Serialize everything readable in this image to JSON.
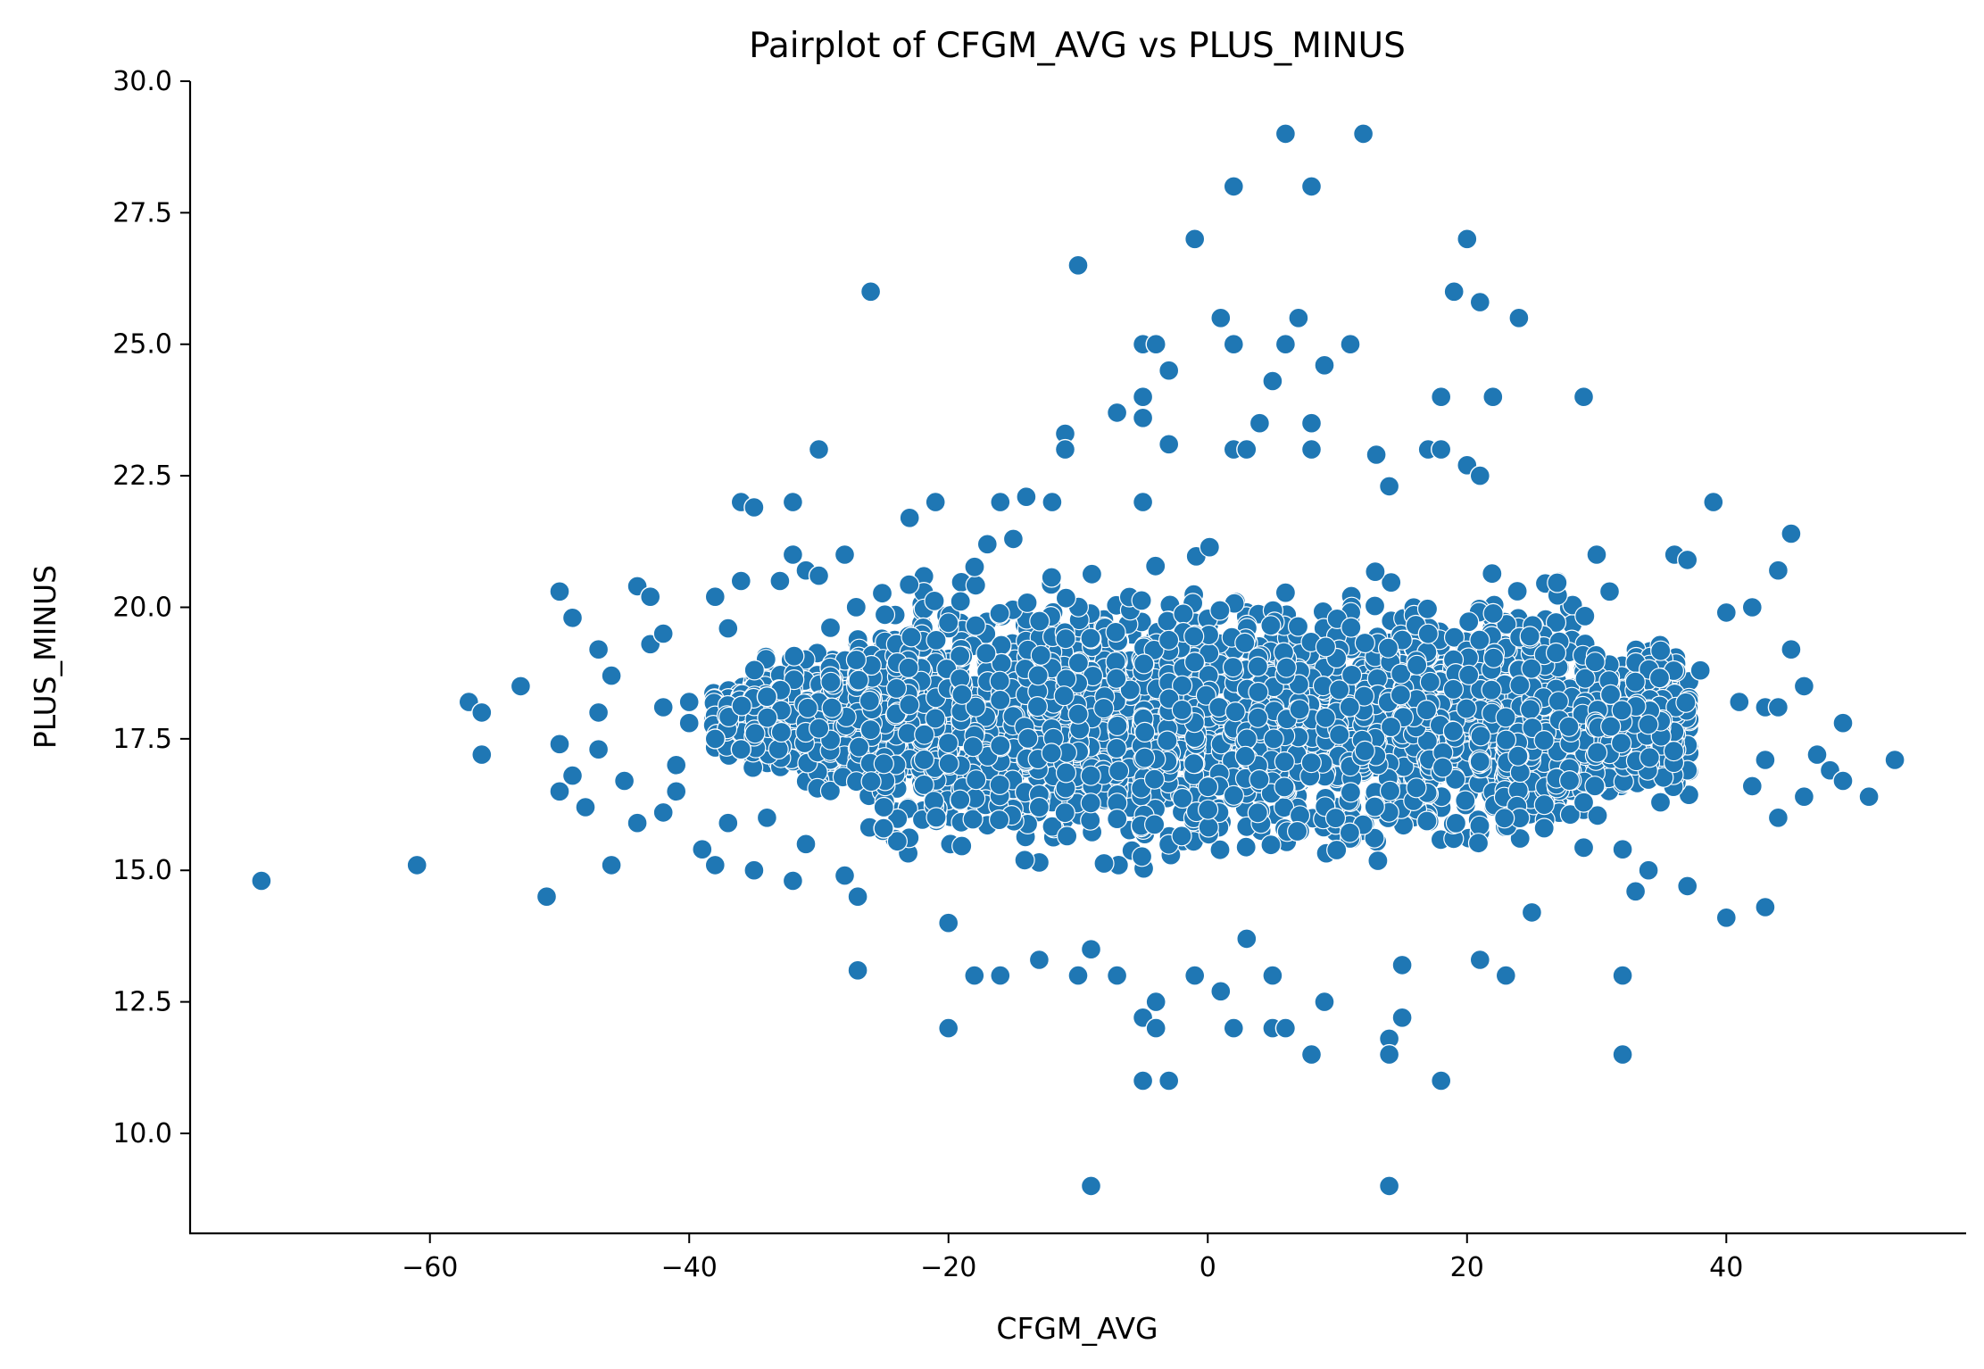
{
  "chart_data": {
    "type": "scatter",
    "title": "Pairplot of CFGM_AVG vs PLUS_MINUS",
    "xlabel": "CFGM_AVG",
    "ylabel": "PLUS_MINUS",
    "xlim": [
      -78.5,
      58.5
    ],
    "ylim": [
      8.1,
      30.0
    ],
    "x_ticks": [
      -60,
      -40,
      -20,
      0,
      20,
      40
    ],
    "x_tick_labels": [
      "−60",
      "−40",
      "−20",
      "0",
      "20",
      "40"
    ],
    "y_ticks": [
      10.0,
      12.5,
      15.0,
      17.5,
      20.0,
      22.5,
      25.0,
      27.5,
      30.0
    ],
    "y_tick_labels": [
      "10.0",
      "12.5",
      "15.0",
      "17.5",
      "20.0",
      "22.5",
      "25.0",
      "27.5",
      "30.0"
    ],
    "grid": false,
    "marker_color": "#1f77b4",
    "marker_edge_color": "#ffffff",
    "points": [
      [
        -73,
        14.8
      ],
      [
        -61,
        15.1
      ],
      [
        -57,
        18.2
      ],
      [
        -56,
        18.0
      ],
      [
        -56,
        17.2
      ],
      [
        -53,
        18.5
      ],
      [
        -51,
        14.5
      ],
      [
        -50,
        20.3
      ],
      [
        -50,
        17.4
      ],
      [
        -50,
        16.5
      ],
      [
        -49,
        19.8
      ],
      [
        -49,
        16.8
      ],
      [
        -48,
        16.2
      ],
      [
        -47,
        18.0
      ],
      [
        -47,
        17.3
      ],
      [
        -47,
        19.2
      ],
      [
        -46,
        18.7
      ],
      [
        -46,
        15.1
      ],
      [
        -45,
        16.7
      ],
      [
        -44,
        15.9
      ],
      [
        -44,
        20.4
      ],
      [
        -43,
        20.2
      ],
      [
        -43,
        19.3
      ],
      [
        -42,
        19.5
      ],
      [
        -42,
        18.1
      ],
      [
        -42,
        16.1
      ],
      [
        -41,
        17.0
      ],
      [
        -41,
        16.5
      ],
      [
        -40,
        18.2
      ],
      [
        -40,
        17.8
      ],
      [
        -39,
        15.4
      ],
      [
        -38,
        20.2
      ],
      [
        -38,
        17.5
      ],
      [
        -38,
        15.1
      ],
      [
        -37,
        19.6
      ],
      [
        -37,
        15.9
      ],
      [
        -36,
        22.0
      ],
      [
        -36,
        20.5
      ],
      [
        -36,
        17.3
      ],
      [
        -35,
        21.9
      ],
      [
        -35,
        15.0
      ],
      [
        -34,
        18.3
      ],
      [
        -34,
        16.0
      ],
      [
        -33,
        20.5
      ],
      [
        -32,
        22.0
      ],
      [
        -32,
        21.0
      ],
      [
        -32,
        14.8
      ],
      [
        -31,
        20.7
      ],
      [
        -31,
        15.5
      ],
      [
        -30,
        23.0
      ],
      [
        -30,
        20.6
      ],
      [
        -28,
        14.9
      ],
      [
        -28,
        21.0
      ],
      [
        -27,
        14.5
      ],
      [
        -27,
        13.1
      ],
      [
        -26,
        26.0
      ],
      [
        -25,
        15.8
      ],
      [
        -23,
        21.7
      ],
      [
        -21,
        22.0
      ],
      [
        -20,
        12.0
      ],
      [
        -20,
        14.0
      ],
      [
        -18,
        13.0
      ],
      [
        -17,
        21.2
      ],
      [
        -16,
        13.0
      ],
      [
        -16,
        22.0
      ],
      [
        -15,
        21.3
      ],
      [
        -14,
        22.1
      ],
      [
        -13,
        13.3
      ],
      [
        -12,
        22.0
      ],
      [
        -11,
        23.3
      ],
      [
        -11,
        23.0
      ],
      [
        -10,
        26.5
      ],
      [
        -10,
        13.0
      ],
      [
        -9,
        9.0
      ],
      [
        -9,
        13.5
      ],
      [
        -7,
        23.7
      ],
      [
        -7,
        13.0
      ],
      [
        -5,
        25.0
      ],
      [
        -5,
        24.0
      ],
      [
        -5,
        23.6
      ],
      [
        -5,
        22.0
      ],
      [
        -5,
        12.2
      ],
      [
        -5,
        11.0
      ],
      [
        -4,
        25.0
      ],
      [
        -4,
        12.5
      ],
      [
        -4,
        12.0
      ],
      [
        -3,
        24.5
      ],
      [
        -3,
        23.1
      ],
      [
        -3,
        11.0
      ],
      [
        -1,
        27.0
      ],
      [
        -1,
        13.0
      ],
      [
        1,
        25.5
      ],
      [
        1,
        12.7
      ],
      [
        2,
        28.0
      ],
      [
        2,
        25.0
      ],
      [
        2,
        23.0
      ],
      [
        2,
        12.0
      ],
      [
        3,
        23.0
      ],
      [
        3,
        13.7
      ],
      [
        4,
        23.5
      ],
      [
        5,
        24.3
      ],
      [
        5,
        13.0
      ],
      [
        5,
        12.0
      ],
      [
        6,
        29.0
      ],
      [
        6,
        25.0
      ],
      [
        6,
        12.0
      ],
      [
        7,
        25.5
      ],
      [
        8,
        28.0
      ],
      [
        8,
        23.5
      ],
      [
        8,
        23.0
      ],
      [
        8,
        11.5
      ],
      [
        9,
        24.6
      ],
      [
        9,
        12.5
      ],
      [
        11,
        25.0
      ],
      [
        12,
        29.0
      ],
      [
        13,
        22.9
      ],
      [
        14,
        22.3
      ],
      [
        14,
        11.8
      ],
      [
        14,
        11.5
      ],
      [
        14,
        9.0
      ],
      [
        15,
        13.2
      ],
      [
        15,
        12.2
      ],
      [
        17,
        23.0
      ],
      [
        18,
        24.0
      ],
      [
        18,
        23.0
      ],
      [
        18,
        11.0
      ],
      [
        19,
        26.0
      ],
      [
        20,
        27.0
      ],
      [
        20,
        22.7
      ],
      [
        21,
        25.8
      ],
      [
        21,
        22.5
      ],
      [
        21,
        13.3
      ],
      [
        22,
        24.0
      ],
      [
        23,
        13.0
      ],
      [
        24,
        25.5
      ],
      [
        25,
        14.2
      ],
      [
        29,
        24.0
      ],
      [
        30,
        21.0
      ],
      [
        31,
        20.3
      ],
      [
        32,
        13.0
      ],
      [
        32,
        11.5
      ],
      [
        32,
        15.4
      ],
      [
        33,
        14.6
      ],
      [
        34,
        15.0
      ],
      [
        36,
        21.0
      ],
      [
        37,
        20.9
      ],
      [
        37,
        14.7
      ],
      [
        38,
        18.8
      ],
      [
        39,
        22.0
      ],
      [
        40,
        19.9
      ],
      [
        40,
        14.1
      ],
      [
        41,
        18.2
      ],
      [
        42,
        20.0
      ],
      [
        42,
        16.6
      ],
      [
        43,
        18.1
      ],
      [
        43,
        17.1
      ],
      [
        43,
        14.3
      ],
      [
        44,
        20.7
      ],
      [
        44,
        18.1
      ],
      [
        44,
        16.0
      ],
      [
        45,
        21.4
      ],
      [
        45,
        19.2
      ],
      [
        46,
        18.5
      ],
      [
        46,
        16.4
      ],
      [
        47,
        17.2
      ],
      [
        48,
        16.9
      ],
      [
        49,
        17.8
      ],
      [
        49,
        16.7
      ],
      [
        51,
        16.4
      ],
      [
        53,
        17.1
      ]
    ]
  }
}
